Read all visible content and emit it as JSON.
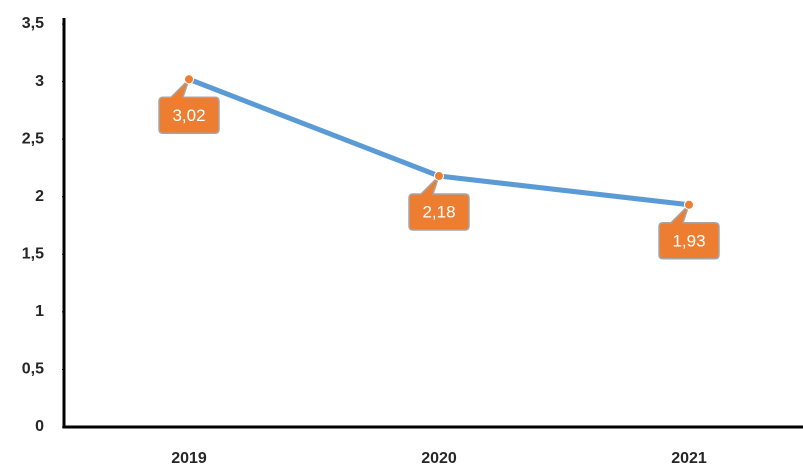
{
  "chart_data": {
    "type": "line",
    "categories": [
      "2019",
      "2020",
      "2021"
    ],
    "series": [
      {
        "color": "#5b9bd5",
        "marker_color": "#ed7d31",
        "values": [
          3.02,
          2.18,
          1.93
        ],
        "value_labels": [
          "3,02",
          "2,18",
          "1,93"
        ]
      }
    ],
    "ylim": [
      0,
      3.5
    ],
    "yticks": [
      0,
      {
        "value": 0.5,
        "label": "0,5"
      },
      1,
      {
        "value": 1.5,
        "label": "1,5"
      },
      2,
      {
        "value": 2.5,
        "label": "2,5"
      },
      3,
      {
        "value": 3.5,
        "label": "3,5"
      }
    ],
    "grid": false
  }
}
